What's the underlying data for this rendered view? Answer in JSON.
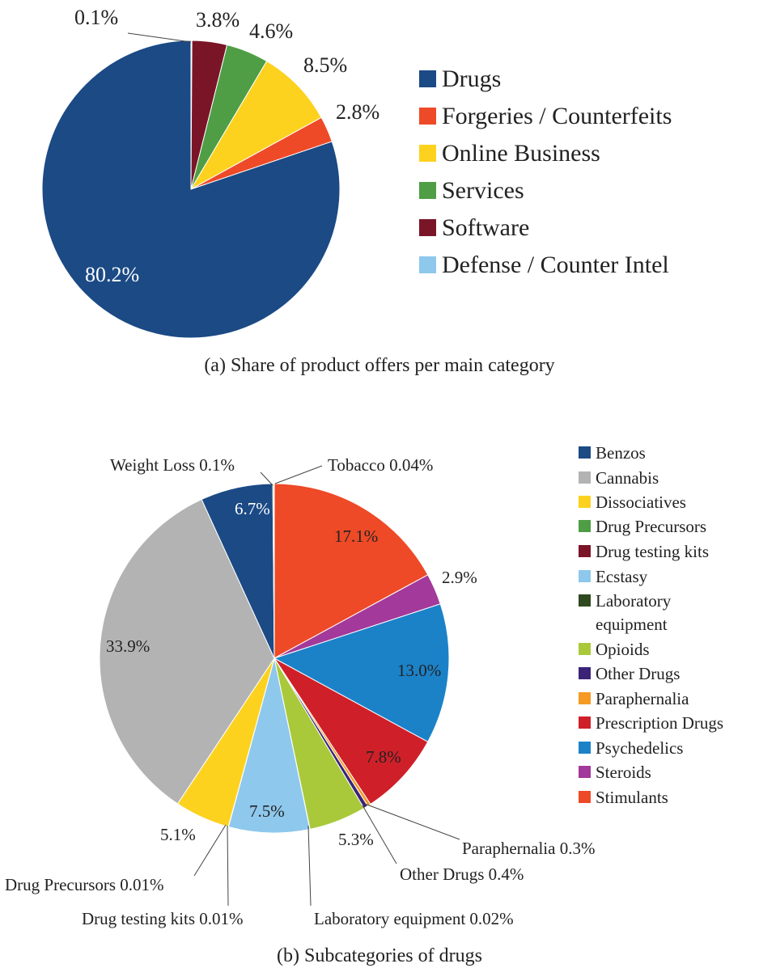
{
  "chart_data": [
    {
      "type": "pie",
      "caption": "(a) Share of product offers per main category",
      "slices": [
        {
          "name": "Drugs",
          "value": 80.2,
          "label": "80.2%",
          "color": "#1b4a85"
        },
        {
          "name": "Forgeries / Counterfeits",
          "value": 2.8,
          "label": "2.8%",
          "color": "#ee4a27"
        },
        {
          "name": "Online Business",
          "value": 8.5,
          "label": "8.5%",
          "color": "#fcd21f"
        },
        {
          "name": "Services",
          "value": 4.6,
          "label": "4.6%",
          "color": "#4f9e45"
        },
        {
          "name": "Software",
          "value": 3.8,
          "label": "3.8%",
          "color": "#7a1527"
        },
        {
          "name": "Defense / Counter Intel",
          "value": 0.1,
          "label": "0.1%",
          "color": "#8ec8ec"
        }
      ],
      "legend": [
        "Drugs",
        "Forgeries / Counterfeits",
        "Online Business",
        "Services",
        "Software",
        "Defense / Counter Intel"
      ]
    },
    {
      "type": "pie",
      "caption": "(b) Subcategories of drugs",
      "slices": [
        {
          "name": "Stimulants",
          "value": 17.1,
          "label": "17.1%",
          "color": "#ee4a27"
        },
        {
          "name": "Steroids",
          "value": 2.9,
          "label": "2.9%",
          "color": "#a3399a"
        },
        {
          "name": "Psychedelics",
          "value": 13.0,
          "label": "13.0%",
          "color": "#1b82c8"
        },
        {
          "name": "Prescription Drugs",
          "value": 7.8,
          "label": "7.8%",
          "color": "#cf2029"
        },
        {
          "name": "Paraphernalia",
          "value": 0.3,
          "label": "Paraphernalia 0.3%",
          "color": "#f59a23"
        },
        {
          "name": "Other Drugs",
          "value": 0.4,
          "label": "Other Drugs 0.4%",
          "color": "#3b2477"
        },
        {
          "name": "Opioids",
          "value": 5.3,
          "label": "5.3%",
          "color": "#a9c93b"
        },
        {
          "name": "Laboratory equipment",
          "value": 0.02,
          "label": "Laboratory equipment 0.02%",
          "color": "#2e4a1e"
        },
        {
          "name": "Ecstasy",
          "value": 7.5,
          "label": "7.5%",
          "color": "#8ec8ec"
        },
        {
          "name": "Drug testing kits",
          "value": 0.01,
          "label": "Drug testing kits 0.01%",
          "color": "#7a1527"
        },
        {
          "name": "Drug Precursors",
          "value": 0.01,
          "label": "Drug Precursors 0.01%",
          "color": "#4f9e45"
        },
        {
          "name": "Dissociatives",
          "value": 5.1,
          "label": "5.1%",
          "color": "#fcd21f"
        },
        {
          "name": "Cannabis",
          "value": 33.9,
          "label": "33.9%",
          "color": "#b3b3b3"
        },
        {
          "name": "Benzos",
          "value": 6.7,
          "label": "6.7%",
          "color": "#1b4a85"
        },
        {
          "name": "Weight Loss",
          "value": 0.1,
          "label": "Weight Loss 0.1%",
          "color": "#8aa63a"
        },
        {
          "name": "Tobacco",
          "value": 0.04,
          "label": "Tobacco 0.04%",
          "color": "#4f9e45"
        }
      ],
      "legend": [
        "Benzos",
        "Cannabis",
        "Dissociatives",
        "Drug Precursors",
        "Drug testing kits",
        "Ecstasy",
        "Laboratory equipment",
        "Opioids",
        "Other Drugs",
        "Paraphernalia",
        "Prescription Drugs",
        "Psychedelics",
        "Steroids",
        "Stimulants"
      ]
    }
  ]
}
